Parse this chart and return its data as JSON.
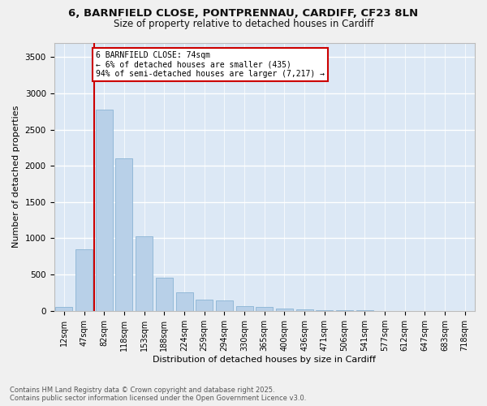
{
  "title_line1": "6, BARNFIELD CLOSE, PONTPRENNAU, CARDIFF, CF23 8LN",
  "title_line2": "Size of property relative to detached houses in Cardiff",
  "xlabel": "Distribution of detached houses by size in Cardiff",
  "ylabel": "Number of detached properties",
  "categories": [
    "12sqm",
    "47sqm",
    "82sqm",
    "118sqm",
    "153sqm",
    "188sqm",
    "224sqm",
    "259sqm",
    "294sqm",
    "330sqm",
    "365sqm",
    "400sqm",
    "436sqm",
    "471sqm",
    "506sqm",
    "541sqm",
    "577sqm",
    "612sqm",
    "647sqm",
    "683sqm",
    "718sqm"
  ],
  "values": [
    55,
    850,
    2780,
    2100,
    1030,
    460,
    250,
    150,
    145,
    65,
    55,
    35,
    20,
    10,
    5,
    5,
    2,
    2,
    1,
    1,
    1
  ],
  "bar_color": "#b8d0e8",
  "bar_edge_color": "#8ab4d4",
  "bg_color": "#dce8f5",
  "fig_bg": "#f0f0f0",
  "grid_color": "#ffffff",
  "vline_color": "#cc0000",
  "vline_xindex": 1.5,
  "annotation_text": "6 BARNFIELD CLOSE: 74sqm\n← 6% of detached houses are smaller (435)\n94% of semi-detached houses are larger (7,217) →",
  "ylim_max": 3700,
  "yticks": [
    0,
    500,
    1000,
    1500,
    2000,
    2500,
    3000,
    3500
  ],
  "footer_line1": "Contains HM Land Registry data © Crown copyright and database right 2025.",
  "footer_line2": "Contains public sector information licensed under the Open Government Licence v3.0."
}
